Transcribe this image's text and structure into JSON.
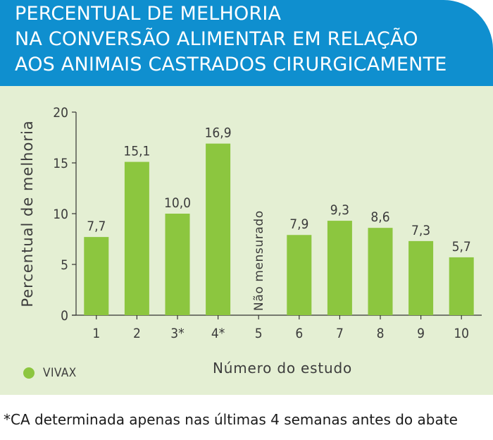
{
  "title_lines": [
    "PERCENTUAL DE MELHORIA",
    "NA CONVERSÃO ALIMENTAR EM RELAÇÃO",
    "AOS ANIMAIS CASTRADOS CIRURGICAMENTE"
  ],
  "legend": {
    "label": "VIVAX",
    "color": "#8cc63f"
  },
  "footnote": "*CA determinada apenas nas últimas 4 semanas antes do abate",
  "colors": {
    "header": "#0f8fcf",
    "panel": "#e4efd3",
    "bar": "#8cc63f"
  },
  "chart_data": {
    "type": "bar",
    "title": "PERCENTUAL DE MELHORIA NA CONVERSÃO ALIMENTAR EM RELAÇÃO AOS ANIMAIS CASTRADOS CIRURGICAMENTE",
    "xlabel": "Número do estudo",
    "ylabel": "Percentual de melhoria",
    "ylim": [
      0,
      20
    ],
    "yticks": [
      0,
      5,
      10,
      15,
      20
    ],
    "categories": [
      "1",
      "2",
      "3*",
      "4*",
      "5",
      "6",
      "7",
      "8",
      "9",
      "10"
    ],
    "series": [
      {
        "name": "VIVAX",
        "values": [
          7.7,
          15.1,
          10.0,
          16.9,
          null,
          7.9,
          9.3,
          8.6,
          7.3,
          5.7
        ],
        "labels": [
          "7,7",
          "15,1",
          "10,0",
          "16,9",
          "Não mensurado",
          "7,9",
          "9,3",
          "8,6",
          "7,3",
          "5,7"
        ]
      }
    ],
    "grid": false,
    "legend_position": "bottom-left"
  }
}
